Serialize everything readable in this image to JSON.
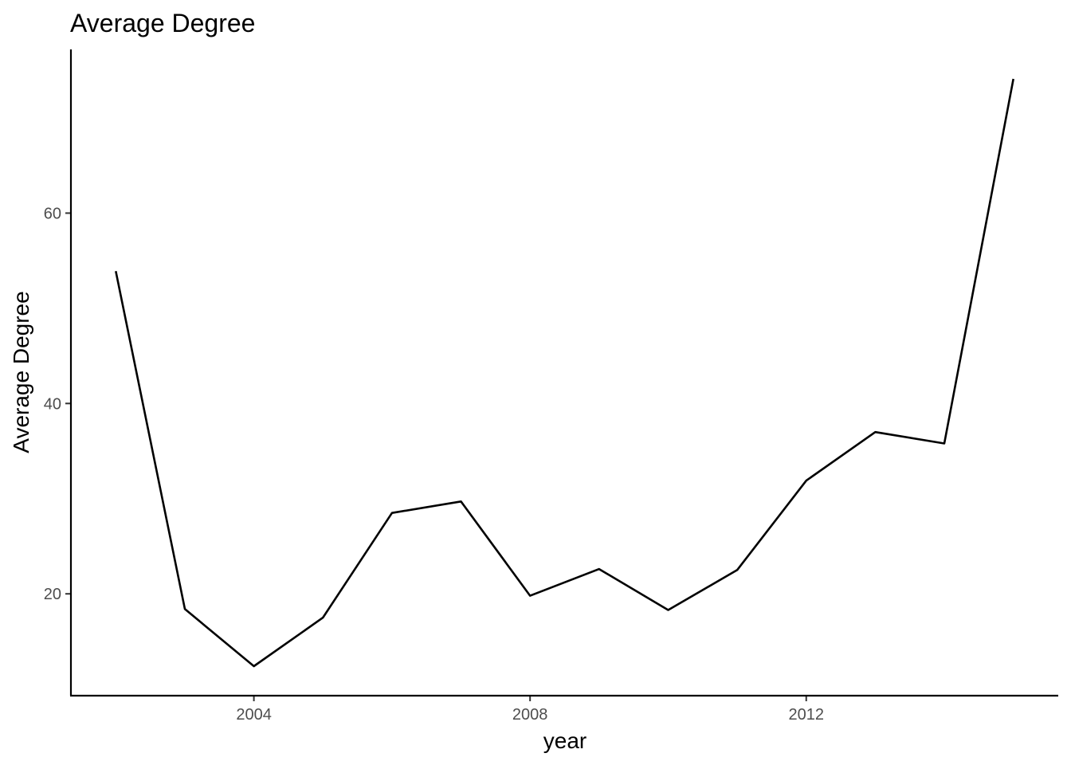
{
  "chart_data": {
    "type": "line",
    "title": "Average Degree",
    "xlabel": "year",
    "ylabel": "Average Degree",
    "x": [
      2002,
      2003,
      2004,
      2005,
      2006,
      2007,
      2008,
      2009,
      2010,
      2011,
      2012,
      2013,
      2014,
      2015
    ],
    "series": [
      {
        "values": [
          53.9,
          18.4,
          12.4,
          17.5,
          28.5,
          29.7,
          19.8,
          22.6,
          18.3,
          22.5,
          31.9,
          37.0,
          35.8,
          74.1
        ]
      }
    ],
    "xticks": [
      {
        "value": 2004,
        "label": "2004"
      },
      {
        "value": 2008,
        "label": "2008"
      },
      {
        "value": 2012,
        "label": "2012"
      }
    ],
    "yticks": [
      {
        "value": 20,
        "label": "20"
      },
      {
        "value": 40,
        "label": "40"
      },
      {
        "value": 60,
        "label": "60"
      }
    ],
    "xlim": [
      2001.35,
      2015.65
    ],
    "ylim": [
      9.3,
      77.2
    ],
    "grid": false,
    "line_color": "#000000"
  }
}
